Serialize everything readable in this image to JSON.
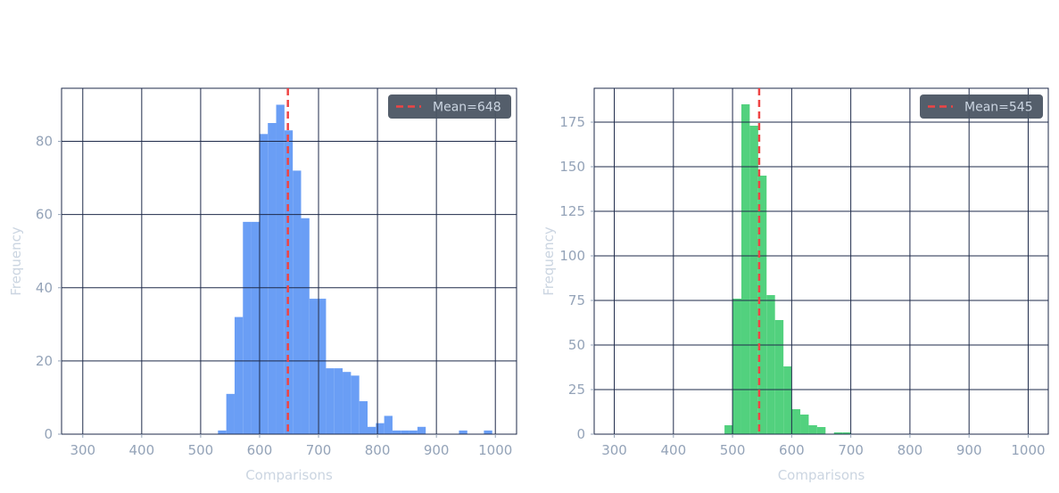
{
  "chart_data": [
    {
      "type": "bar",
      "subtype": "histogram",
      "xlabel": "Comparisons",
      "ylabel": "Frequency",
      "xlim": [
        264,
        1036
      ],
      "ylim": [
        0,
        94.5
      ],
      "xticks": [
        300,
        400,
        500,
        600,
        700,
        800,
        900,
        1000
      ],
      "yticks": [
        0,
        20,
        40,
        60,
        80
      ],
      "grid": true,
      "bar_color": "#6a9ef5",
      "bins": [
        {
          "x0": 529.4,
          "x1": 543.5,
          "count": 1
        },
        {
          "x0": 543.5,
          "x1": 557.6,
          "count": 11
        },
        {
          "x0": 557.6,
          "x1": 571.7,
          "count": 32
        },
        {
          "x0": 571.7,
          "x1": 585.8,
          "count": 58
        },
        {
          "x0": 585.8,
          "x1": 599.9,
          "count": 58
        },
        {
          "x0": 599.9,
          "x1": 614.0,
          "count": 82
        },
        {
          "x0": 614.0,
          "x1": 628.1,
          "count": 85
        },
        {
          "x0": 628.1,
          "x1": 642.2,
          "count": 90
        },
        {
          "x0": 642.2,
          "x1": 656.3,
          "count": 83
        },
        {
          "x0": 656.3,
          "x1": 670.4,
          "count": 72
        },
        {
          "x0": 670.4,
          "x1": 684.5,
          "count": 59
        },
        {
          "x0": 684.5,
          "x1": 698.6,
          "count": 37
        },
        {
          "x0": 698.6,
          "x1": 712.7,
          "count": 37
        },
        {
          "x0": 712.7,
          "x1": 726.8,
          "count": 18
        },
        {
          "x0": 726.8,
          "x1": 740.9,
          "count": 18
        },
        {
          "x0": 740.9,
          "x1": 755.0,
          "count": 17
        },
        {
          "x0": 755.0,
          "x1": 769.1,
          "count": 16
        },
        {
          "x0": 769.1,
          "x1": 783.2,
          "count": 9
        },
        {
          "x0": 783.2,
          "x1": 797.3,
          "count": 2
        },
        {
          "x0": 797.3,
          "x1": 811.4,
          "count": 3
        },
        {
          "x0": 811.4,
          "x1": 825.5,
          "count": 5
        },
        {
          "x0": 825.5,
          "x1": 839.6,
          "count": 1
        },
        {
          "x0": 839.6,
          "x1": 853.7,
          "count": 1
        },
        {
          "x0": 853.7,
          "x1": 867.8,
          "count": 1
        },
        {
          "x0": 867.8,
          "x1": 881.9,
          "count": 2
        },
        {
          "x0": 938.3,
          "x1": 952.4,
          "count": 1
        },
        {
          "x0": 980.6,
          "x1": 994.7,
          "count": 1
        }
      ],
      "mean": 648,
      "mean_line_color": "#ef4444",
      "legend": {
        "label": "Mean=648",
        "placement": "top-right"
      }
    },
    {
      "type": "bar",
      "subtype": "histogram",
      "xlabel": "Comparisons",
      "ylabel": "Frequency",
      "xlim": [
        266,
        1034
      ],
      "ylim": [
        0,
        194
      ],
      "xticks": [
        300,
        400,
        500,
        600,
        700,
        800,
        900,
        1000
      ],
      "yticks": [
        0,
        25,
        50,
        75,
        100,
        125,
        150,
        175
      ],
      "grid": true,
      "bar_color": "#52d17e",
      "bins": [
        {
          "x0": 486.4,
          "x1": 500.6,
          "count": 5
        },
        {
          "x0": 500.6,
          "x1": 514.9,
          "count": 76
        },
        {
          "x0": 514.9,
          "x1": 529.1,
          "count": 185
        },
        {
          "x0": 529.1,
          "x1": 543.4,
          "count": 173
        },
        {
          "x0": 543.4,
          "x1": 557.6,
          "count": 145
        },
        {
          "x0": 557.6,
          "x1": 571.8,
          "count": 78
        },
        {
          "x0": 571.8,
          "x1": 586.1,
          "count": 64
        },
        {
          "x0": 586.1,
          "x1": 600.3,
          "count": 38
        },
        {
          "x0": 600.3,
          "x1": 614.6,
          "count": 14
        },
        {
          "x0": 614.6,
          "x1": 628.8,
          "count": 11
        },
        {
          "x0": 628.8,
          "x1": 643.0,
          "count": 5
        },
        {
          "x0": 643.0,
          "x1": 657.3,
          "count": 4
        },
        {
          "x0": 671.5,
          "x1": 685.8,
          "count": 1
        },
        {
          "x0": 685.8,
          "x1": 700.0,
          "count": 1
        }
      ],
      "mean": 545,
      "mean_line_color": "#ef4444",
      "legend": {
        "label": "Mean=545",
        "placement": "top-right"
      }
    }
  ],
  "style": {
    "grid_color": "#1e2a4a",
    "frame_color": "#1e2a4a",
    "legend_bg": "#4b5563",
    "tick_color": "#94a3b8",
    "label_color": "#cbd5e1"
  }
}
